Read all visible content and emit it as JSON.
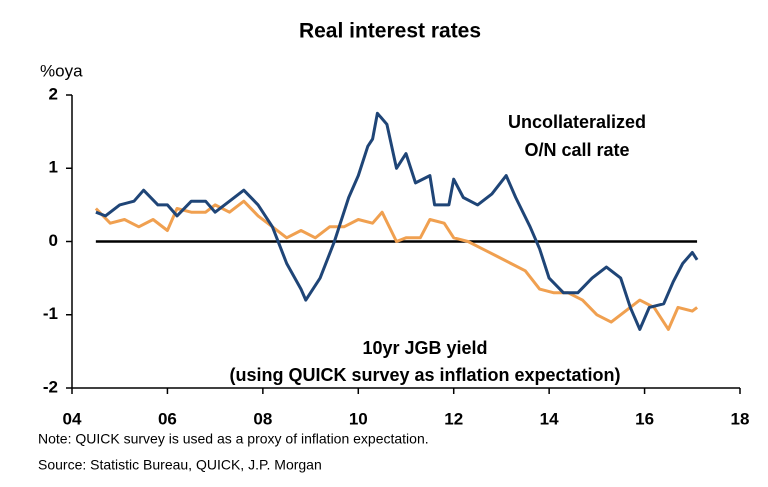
{
  "chart_data": {
    "type": "line",
    "title": "Real interest rates",
    "y_label": "%oya",
    "xlim": [
      2004,
      2018
    ],
    "ylim": [
      -2,
      2
    ],
    "xticks": [
      {
        "value": 2004,
        "label": "04"
      },
      {
        "value": 2006,
        "label": "06"
      },
      {
        "value": 2008,
        "label": "08"
      },
      {
        "value": 2010,
        "label": "10"
      },
      {
        "value": 2012,
        "label": "12"
      },
      {
        "value": 2014,
        "label": "14"
      },
      {
        "value": 2016,
        "label": "16"
      },
      {
        "value": 2018,
        "label": "18"
      }
    ],
    "yticks": [
      -2,
      -1,
      0,
      1,
      2
    ],
    "series": [
      {
        "name": [
          "Uncollateralized",
          "O/N call rate"
        ],
        "color": "#1f4577",
        "x": [
          2004.5,
          2004.7,
          2005.0,
          2005.3,
          2005.5,
          2005.8,
          2006.0,
          2006.2,
          2006.5,
          2006.8,
          2007.0,
          2007.3,
          2007.6,
          2007.9,
          2008.2,
          2008.5,
          2008.8,
          2008.9,
          2009.2,
          2009.5,
          2009.8,
          2010.0,
          2010.2,
          2010.3,
          2010.4,
          2010.6,
          2010.8,
          2011.0,
          2011.2,
          2011.5,
          2011.6,
          2011.9,
          2012.0,
          2012.2,
          2012.5,
          2012.8,
          2013.1,
          2013.3,
          2013.6,
          2013.8,
          2014.0,
          2014.3,
          2014.6,
          2014.9,
          2015.2,
          2015.5,
          2015.7,
          2015.9,
          2016.1,
          2016.4,
          2016.6,
          2016.8,
          2017.0,
          2017.1
        ],
        "values": [
          0.4,
          0.35,
          0.5,
          0.55,
          0.7,
          0.5,
          0.5,
          0.35,
          0.55,
          0.55,
          0.4,
          0.55,
          0.7,
          0.5,
          0.2,
          -0.3,
          -0.65,
          -0.8,
          -0.5,
          0.0,
          0.6,
          0.9,
          1.3,
          1.4,
          1.75,
          1.6,
          1.0,
          1.2,
          0.8,
          0.9,
          0.5,
          0.5,
          0.85,
          0.6,
          0.5,
          0.65,
          0.9,
          0.6,
          0.2,
          -0.1,
          -0.5,
          -0.7,
          -0.7,
          -0.5,
          -0.35,
          -0.5,
          -0.9,
          -1.2,
          -0.9,
          -0.85,
          -0.55,
          -0.3,
          -0.15,
          -0.25
        ]
      },
      {
        "name": [
          "10yr JGB yield",
          "(using QUICK survey as inflation expectation)"
        ],
        "color": "#f0a050",
        "x": [
          2004.5,
          2004.8,
          2005.1,
          2005.4,
          2005.7,
          2006.0,
          2006.2,
          2006.5,
          2006.8,
          2007.0,
          2007.3,
          2007.6,
          2007.9,
          2008.2,
          2008.5,
          2008.8,
          2009.1,
          2009.4,
          2009.7,
          2010.0,
          2010.3,
          2010.5,
          2010.8,
          2011.0,
          2011.3,
          2011.5,
          2011.8,
          2012.0,
          2012.3,
          2012.6,
          2012.9,
          2013.2,
          2013.5,
          2013.8,
          2014.1,
          2014.4,
          2014.7,
          2015.0,
          2015.3,
          2015.6,
          2015.9,
          2016.2,
          2016.5,
          2016.7,
          2017.0,
          2017.1
        ],
        "values": [
          0.45,
          0.25,
          0.3,
          0.2,
          0.3,
          0.15,
          0.45,
          0.4,
          0.4,
          0.5,
          0.4,
          0.55,
          0.35,
          0.2,
          0.05,
          0.15,
          0.05,
          0.2,
          0.2,
          0.3,
          0.25,
          0.4,
          0.0,
          0.05,
          0.05,
          0.3,
          0.25,
          0.05,
          0.0,
          -0.1,
          -0.2,
          -0.3,
          -0.4,
          -0.65,
          -0.7,
          -0.7,
          -0.8,
          -1.0,
          -1.1,
          -0.95,
          -0.8,
          -0.9,
          -1.2,
          -0.9,
          -0.95,
          -0.9
        ]
      }
    ],
    "notes": [
      "Note: QUICK survey is used as a proxy of inflation expectation.",
      "Source: Statistic Bureau, QUICK, J.P. Morgan"
    ]
  }
}
